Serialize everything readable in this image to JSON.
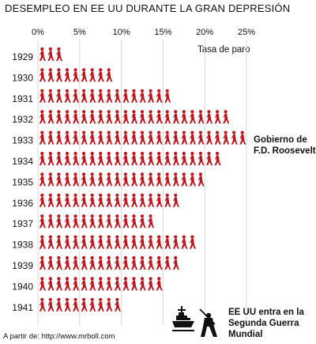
{
  "title": "DESEMPLEO EN EE UU DURANTE LA GRAN DEPRESIÓN",
  "legend": "Tasa de paro",
  "annotations": {
    "roosevelt": [
      "Gobierno de",
      "F.D. Roosevelt"
    ],
    "war": [
      "EE UU entra en la",
      "Segunda Guerra",
      "Mundial"
    ]
  },
  "source": "A partir de: http://www.mrboll.com",
  "colors": {
    "figure": "#c0141c",
    "axis_text": "#111111",
    "grid": "#d9d9d9"
  },
  "icons": {
    "unemployed_figure": "walking-person-icon",
    "warship": "warship-icon",
    "soldier": "soldier-icon"
  },
  "chart_data": {
    "type": "bar",
    "orientation": "horizontal",
    "unit_per_figure": 1,
    "categories": [
      "1929",
      "1930",
      "1931",
      "1932",
      "1933",
      "1934",
      "1935",
      "1936",
      "1937",
      "1938",
      "1939",
      "1940",
      "1941"
    ],
    "values": [
      3,
      9,
      16,
      23,
      25,
      22,
      20,
      17,
      14,
      19,
      17,
      15,
      10
    ],
    "xlim": [
      0,
      25
    ],
    "xticks": [
      "0%",
      "5%",
      "10%",
      "15%",
      "20%",
      "25%"
    ],
    "xlabel": "Tasa de paro",
    "grid": true
  }
}
